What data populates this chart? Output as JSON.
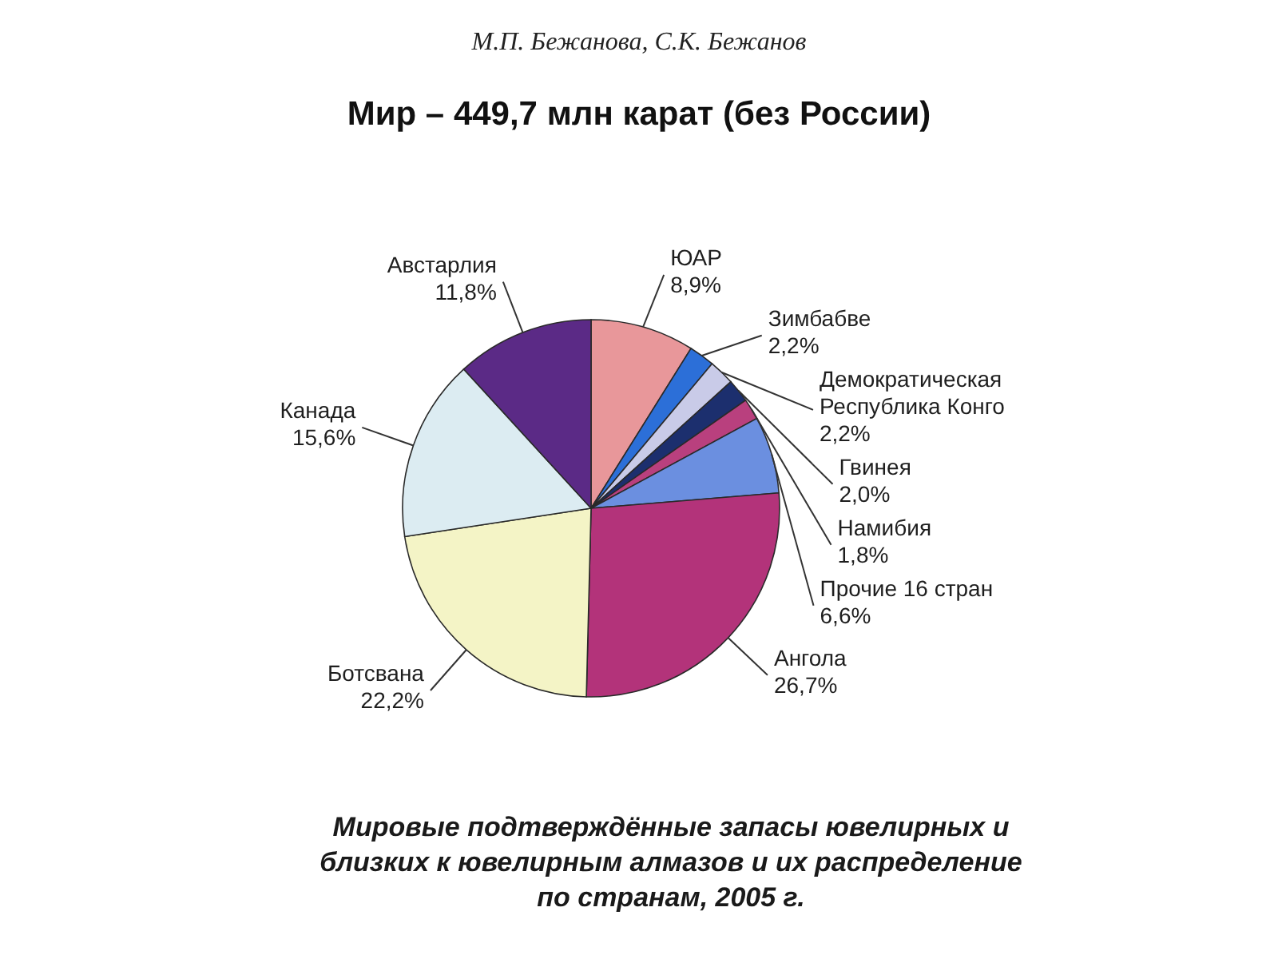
{
  "chart_data": {
    "type": "pie",
    "title": "Мир – 449,7 млн карат (без России)",
    "categories": [
      "ЮАР",
      "Зимбабве",
      "Демократическая Республика Конго",
      "Гвинея",
      "Намибия",
      "Прочие 16 стран",
      "Ангола",
      "Ботсвана",
      "Канада",
      "Австарлия"
    ],
    "values": [
      8.9,
      2.2,
      2.2,
      2.0,
      1.8,
      6.6,
      26.7,
      22.2,
      15.6,
      11.8
    ],
    "value_labels": [
      "8,9%",
      "2,2%",
      "2,2%",
      "2,0%",
      "1,8%",
      "6,6%",
      "26,7%",
      "22,2%",
      "15,6%",
      "11,8%"
    ],
    "colors": [
      "#e8979a",
      "#2c6fd8",
      "#c9cbe8",
      "#1c2f6e",
      "#b9407e",
      "#6b8fe0",
      "#b3337a",
      "#f4f4c6",
      "#dcecf2",
      "#5b2a86"
    ],
    "annotations": [
      "М.П. Бежанова, С.К. Бежанов",
      "Мировые подтверждённые запасы ювелирных и близких к ювелирным алмазов и их распределение по странам, 2005 г."
    ]
  }
}
